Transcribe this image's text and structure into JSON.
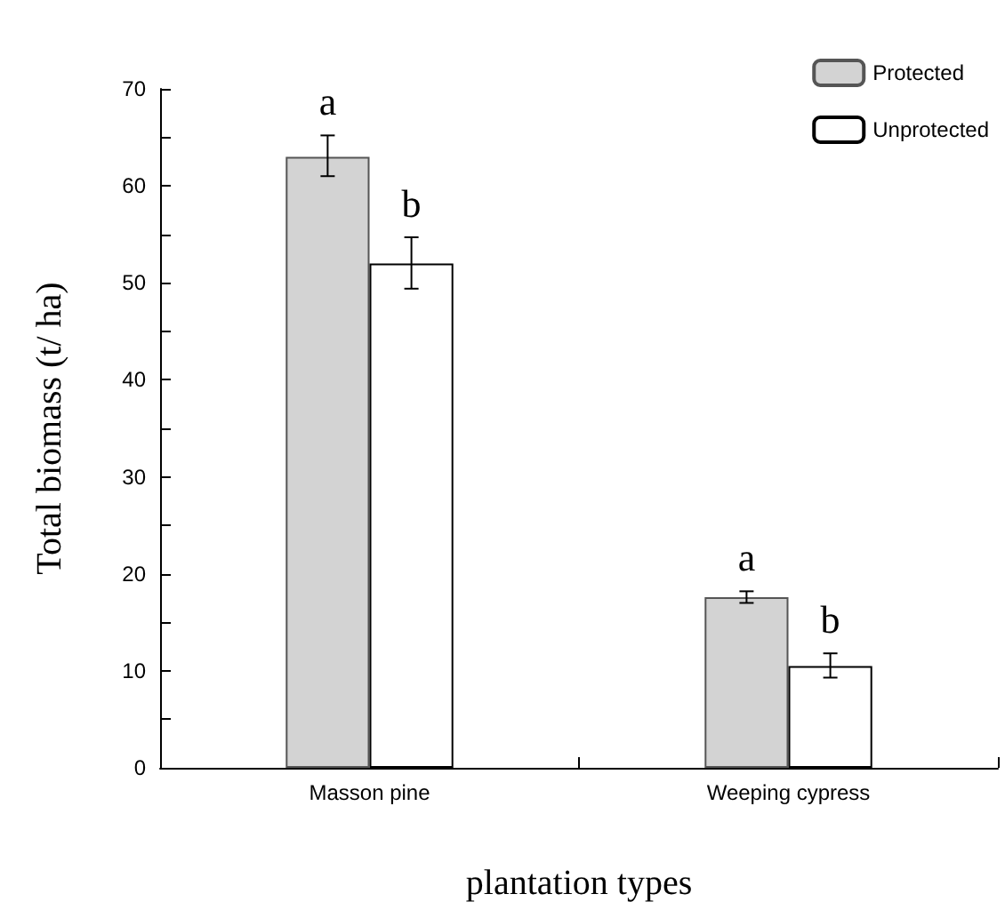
{
  "chart_data": {
    "type": "bar",
    "xlabel": "plantation types",
    "ylabel": "Total biomass (t/ ha)",
    "categories": [
      "Masson pine",
      "Weeping cypress"
    ],
    "series": [
      {
        "name": "Protected",
        "color": "#d3d3d3",
        "values": [
          63,
          17.6
        ],
        "errors": [
          [
            61,
            65.2
          ],
          [
            17,
            18.2
          ]
        ]
      },
      {
        "name": "Unprotected",
        "color": "#ffffff",
        "values": [
          52,
          10.5
        ],
        "errors": [
          [
            49.4,
            54.7
          ],
          [
            9.3,
            11.8
          ]
        ]
      }
    ],
    "ylim": [
      0,
      70
    ],
    "yticks": [
      0,
      {
        "value": 5,
        "label": null
      },
      10,
      {
        "value": 15,
        "label": null
      },
      20,
      {
        "value": 25,
        "label": null
      },
      30,
      {
        "value": 35,
        "label": null
      },
      40,
      {
        "value": 45,
        "label": null
      },
      50,
      {
        "value": 55,
        "label": null
      },
      60,
      {
        "value": 65,
        "label": null
      },
      70
    ],
    "annotations": [
      {
        "text": "a",
        "x": "Masson pine",
        "y": 63
      },
      {
        "text": "b",
        "x": "Masson pine",
        "y": 52
      },
      {
        "text": "a",
        "x": "Weeping cypress",
        "y": 17.6
      },
      {
        "text": "b",
        "x": "Weeping cypress",
        "y": 10.5
      }
    ],
    "grid": false,
    "legend": "top right"
  }
}
